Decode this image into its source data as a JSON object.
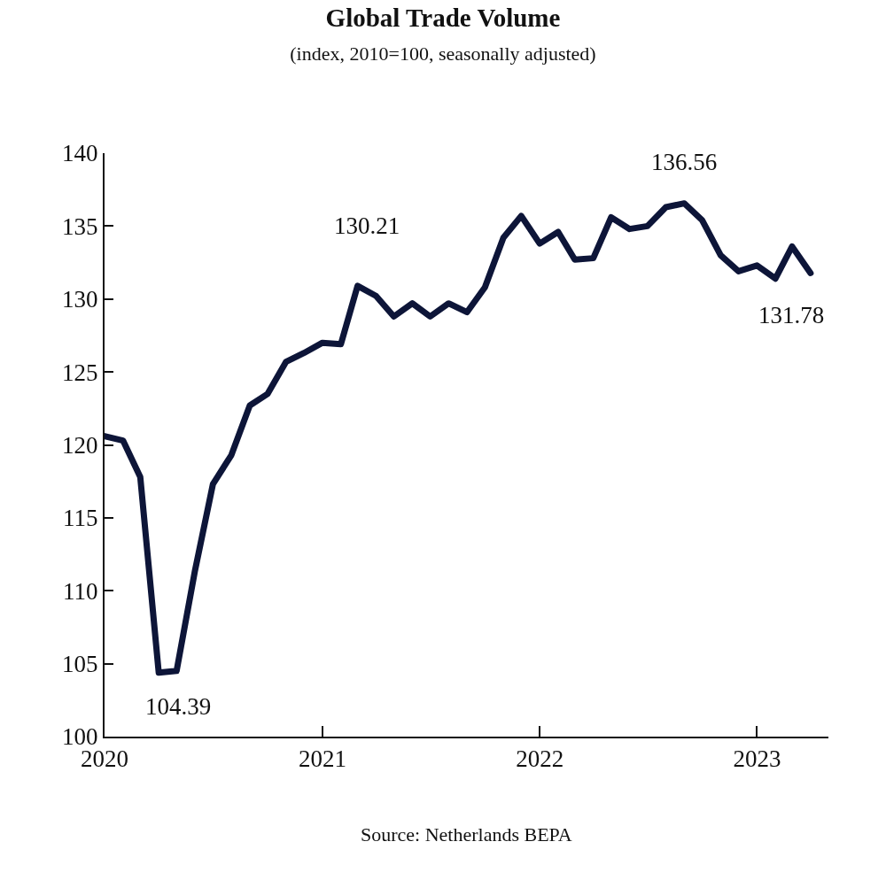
{
  "chart_data": {
    "type": "line",
    "title": "Global Trade Volume",
    "subtitle": "(index, 2010=100, seasonally adjusted)",
    "x": [
      "2020-01",
      "2020-02",
      "2020-03",
      "2020-04",
      "2020-05",
      "2020-06",
      "2020-07",
      "2020-08",
      "2020-09",
      "2020-10",
      "2020-11",
      "2020-12",
      "2021-01",
      "2021-02",
      "2021-03",
      "2021-04",
      "2021-05",
      "2021-06",
      "2021-07",
      "2021-08",
      "2021-09",
      "2021-10",
      "2021-11",
      "2021-12",
      "2022-01",
      "2022-02",
      "2022-03",
      "2022-04",
      "2022-05",
      "2022-06",
      "2022-07",
      "2022-08",
      "2022-09",
      "2022-10",
      "2022-11",
      "2022-12",
      "2023-01",
      "2023-02",
      "2023-03",
      "2023-04"
    ],
    "series": [
      {
        "color": "#0d1538",
        "values": [
          120.6,
          120.3,
          117.8,
          104.39,
          104.5,
          111.4,
          117.3,
          119.3,
          122.7,
          123.5,
          125.7,
          126.3,
          127.0,
          126.9,
          130.9,
          130.21,
          128.8,
          129.7,
          128.8,
          129.7,
          129.1,
          130.8,
          134.2,
          135.7,
          133.8,
          134.6,
          132.7,
          132.8,
          135.6,
          134.8,
          135.0,
          136.3,
          136.56,
          135.4,
          133.0,
          131.9,
          132.3,
          131.4,
          133.6,
          131.78
        ]
      }
    ],
    "xlim": [
      "2020-01",
      "2023-05"
    ],
    "xticks": [
      {
        "value": "2020",
        "label": "2020"
      },
      {
        "value": "2021",
        "label": "2021"
      },
      {
        "value": "2022",
        "label": "2022"
      },
      {
        "value": "2023",
        "label": "2023"
      }
    ],
    "ylim": [
      100,
      140
    ],
    "yticks": [
      100,
      105,
      110,
      115,
      120,
      125,
      130,
      135,
      140
    ],
    "grid": false,
    "line_style": "solid",
    "annotations": [
      {
        "text": "104.39",
        "x": "2020-04",
        "y": 104.39
      },
      {
        "text": "130.21",
        "x": "2021-04",
        "y": 130.21
      },
      {
        "text": "136.56",
        "x": "2022-09",
        "y": 136.56
      },
      {
        "text": "131.78",
        "x": "2023-04",
        "y": 131.78
      },
      "Source: Netherlands BEPA"
    ]
  }
}
